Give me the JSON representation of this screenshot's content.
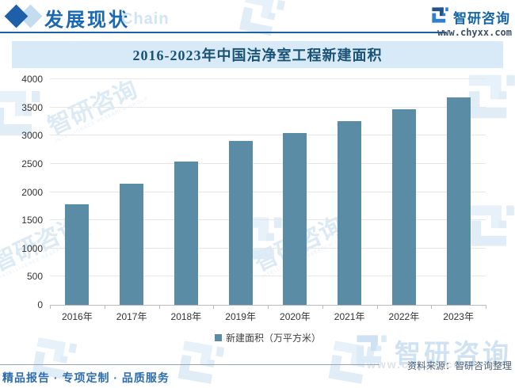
{
  "header": {
    "section_title": "发展现状",
    "section_watermark": "Chain"
  },
  "brand": {
    "name": "智研咨询",
    "site": "www.chyxx.com",
    "watermark_en": "INTELLIGENCE RESEARCH GROUP"
  },
  "chart_data": {
    "type": "bar",
    "title": "2016-2023年中国洁净室工程新建面积",
    "categories": [
      "2016年",
      "2017年",
      "2018年",
      "2019年",
      "2020年",
      "2021年",
      "2022年",
      "2023年"
    ],
    "values": [
      1780,
      2150,
      2540,
      2900,
      3050,
      3260,
      3460,
      3680
    ],
    "legend": "新建面积（万平方米）",
    "xlabel": "",
    "ylabel": "",
    "ylim": [
      0,
      4000
    ],
    "yticks": [
      0,
      500,
      1000,
      1500,
      2000,
      2500,
      3000,
      3500,
      4000
    ],
    "grid": true,
    "legend_position": "bottom"
  },
  "source": "资料来源：智研咨询整理",
  "footer_tagline": "精品报告 · 专项定制 · 品质服务",
  "colors": {
    "bar": "#5b8ca6",
    "accent_blue": "#1a68b2",
    "title_band_bg": "#d8eaf7",
    "title_text": "#1a5276",
    "watermark_blue": "#dceaf6"
  }
}
